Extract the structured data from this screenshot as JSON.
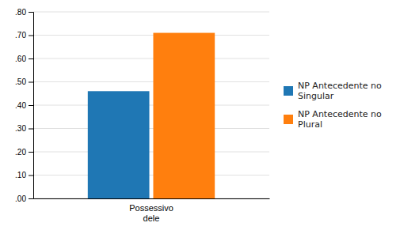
{
  "chart_data": {
    "type": "bar",
    "categories": [
      "Possessivo\ndele"
    ],
    "series": [
      {
        "name": "NP Antecedente no\nSingular",
        "values": [
          0.46
        ]
      },
      {
        "name": "NP Antecedente no\nPlural",
        "values": [
          0.71
        ]
      }
    ],
    "ylim": [
      0.0,
      0.8
    ],
    "yticks": [
      {
        "value": 0.0,
        "label": ".00"
      },
      {
        "value": 0.1,
        "label": ".10"
      },
      {
        "value": 0.2,
        "label": ".20"
      },
      {
        "value": 0.3,
        "label": ".30"
      },
      {
        "value": 0.4,
        "label": ".40"
      },
      {
        "value": 0.5,
        "label": ".50"
      },
      {
        "value": 0.6,
        "label": ".60"
      },
      {
        "value": 0.7,
        "label": ".70"
      },
      {
        "value": 0.8,
        "label": ".80"
      }
    ],
    "grid": true,
    "legend": "right"
  }
}
